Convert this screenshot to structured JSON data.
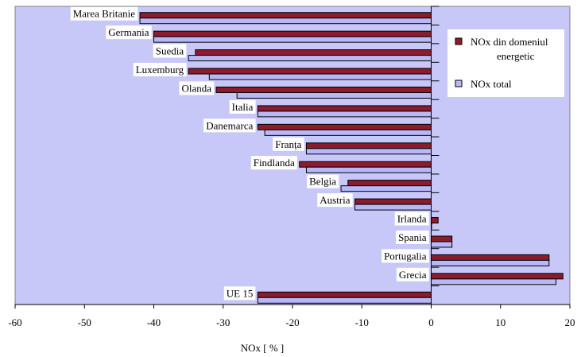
{
  "chart_data": {
    "type": "bar",
    "orientation": "horizontal",
    "categories": [
      "Marea Britanie",
      "Germania",
      "Suedia",
      "Luxemburg",
      "Olanda",
      "Italia",
      "Danemarca",
      "Franța",
      "Findlanda",
      "Belgia",
      "Austria",
      "Irlanda",
      "Spania",
      "Portugalia",
      "Grecia",
      "UE 15"
    ],
    "series": [
      {
        "name": "NOx din domeniul energetic",
        "color": "#8b1c2c",
        "values": [
          -42,
          -40,
          -34,
          -35,
          -31,
          -25,
          -25,
          -18,
          -19,
          -12,
          -11,
          1,
          3,
          17,
          19,
          -25
        ]
      },
      {
        "name": "NOx total",
        "color": "#b8b8f8",
        "values": [
          -42,
          -40,
          -35,
          -32,
          -28,
          -25,
          -24,
          -18,
          -18,
          -13,
          -11,
          0,
          3,
          17,
          18,
          -25
        ]
      }
    ],
    "xlabel": "NOx  [ % ]",
    "ylabel": "",
    "xlim": [
      -60,
      20
    ],
    "xticks": [
      "-60",
      "-50",
      "-40",
      "-30",
      "-20",
      "-10",
      "0",
      "10",
      "20"
    ],
    "plot_background": "#c8c8f8",
    "legend_position": "right",
    "grid": false
  }
}
